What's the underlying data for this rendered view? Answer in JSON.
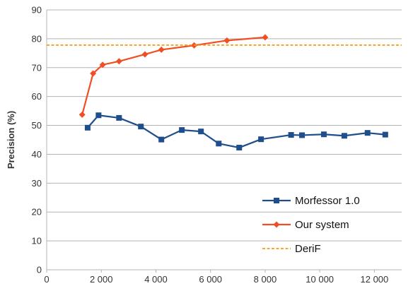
{
  "chart_data": {
    "type": "line",
    "title": "",
    "xlabel": "",
    "ylabel": "Precision (%)",
    "xlim": [
      0,
      13000
    ],
    "ylim": [
      0,
      90
    ],
    "x_ticks": [
      0,
      2000,
      4000,
      6000,
      8000,
      10000,
      12000
    ],
    "x_tick_labels": [
      "0",
      "2 000",
      "4 000",
      "6 000",
      "8 000",
      "10 000",
      "12 000"
    ],
    "y_ticks": [
      0,
      10,
      20,
      30,
      40,
      50,
      60,
      70,
      80,
      90
    ],
    "y_tick_labels": [
      "0",
      "10",
      "20",
      "30",
      "40",
      "50",
      "60",
      "70",
      "80",
      "90"
    ],
    "grid": {
      "horizontal": true,
      "vertical": false
    },
    "legend_position": "bottom-right",
    "series": [
      {
        "name": "Morfessor 1.0",
        "color": "#1f4e8c",
        "marker": "square",
        "x": [
          1500,
          1900,
          2650,
          3450,
          4200,
          4950,
          5650,
          6300,
          7050,
          7850,
          8950,
          9350,
          10150,
          10900,
          11750,
          12400
        ],
        "y": [
          49.2,
          53.5,
          52.6,
          49.6,
          45.1,
          48.4,
          47.9,
          43.7,
          42.3,
          45.2,
          46.7,
          46.6,
          46.9,
          46.4,
          47.4,
          46.8
        ]
      },
      {
        "name": "Our system",
        "color": "#f04e23",
        "marker": "diamond",
        "x": [
          1300,
          1700,
          2050,
          2650,
          3600,
          4200,
          5400,
          6600,
          8000
        ],
        "y": [
          53.7,
          68.0,
          71.0,
          72.2,
          74.6,
          76.2,
          77.7,
          79.4,
          80.5
        ]
      },
      {
        "name": "DeriF",
        "color": "#f39c12",
        "style": "dashed",
        "y": 77.8
      }
    ]
  }
}
